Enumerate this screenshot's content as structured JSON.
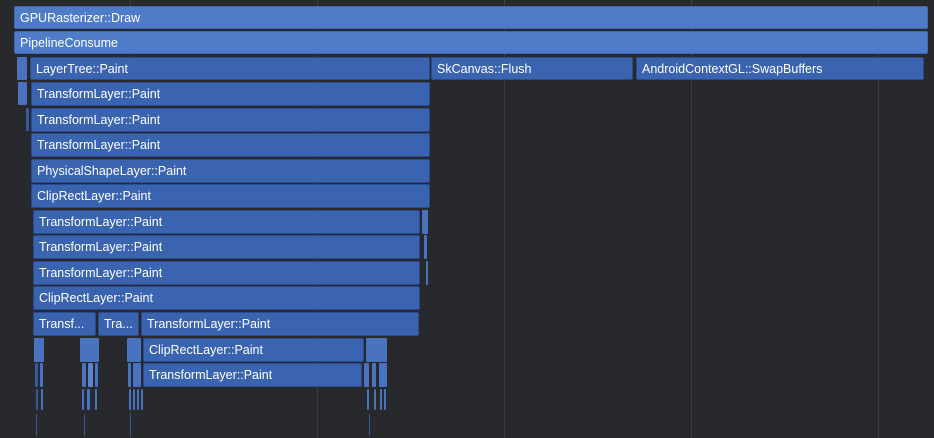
{
  "colors": {
    "background": "#27292c",
    "bar": "#3a63b0",
    "bar_top": "#4f7cc9",
    "grid": "#3a3d42",
    "text": "#ffffff"
  },
  "slices": {
    "gpu_rasterizer_draw": "GPURasterizer::Draw",
    "pipeline_consume": "PipelineConsume",
    "layer_tree_paint": "LayerTree::Paint",
    "skcanvas_flush": "SkCanvas::Flush",
    "android_swap_buffers": "AndroidContextGL::SwapBuffers",
    "depth3": [
      "TransformLayer::Paint",
      "TransformLayer::Paint",
      "TransformLayer::Paint",
      "PhysicalShapeLayer::Paint",
      "ClipRectLayer::Paint",
      "TransformLayer::Paint",
      "TransformLayer::Paint",
      "TransformLayer::Paint",
      "ClipRectLayer::Paint"
    ],
    "row13_a": "Transf...",
    "row13_b": "Tra...",
    "row13_c": "TransformLayer::Paint",
    "row14": "ClipRectLayer::Paint",
    "row15": "TransformLayer::Paint"
  }
}
